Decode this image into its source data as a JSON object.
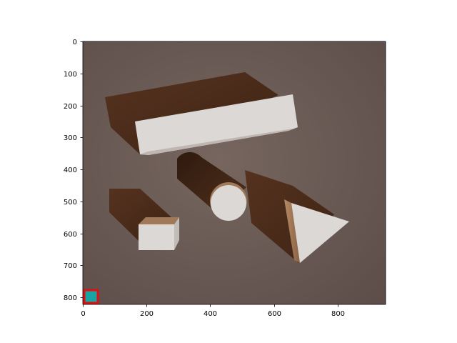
{
  "figure": {
    "x_ticks": [
      "0",
      "200",
      "400",
      "600",
      "800"
    ],
    "y_ticks": [
      "0",
      "100",
      "200",
      "300",
      "400",
      "500",
      "600",
      "700",
      "800"
    ]
  },
  "scene": {
    "background_color": "#6b5a55",
    "shadow_color": "#4a2b1a",
    "face_color": "#dcd8d6",
    "side_color": "#a0795a",
    "objects": [
      {
        "shape": "long-box"
      },
      {
        "shape": "cylinder"
      },
      {
        "shape": "small-cube"
      },
      {
        "shape": "triangular-prism"
      }
    ],
    "marker": {
      "fill_color": "#1aa3a3",
      "border_color": "#e01010"
    }
  }
}
